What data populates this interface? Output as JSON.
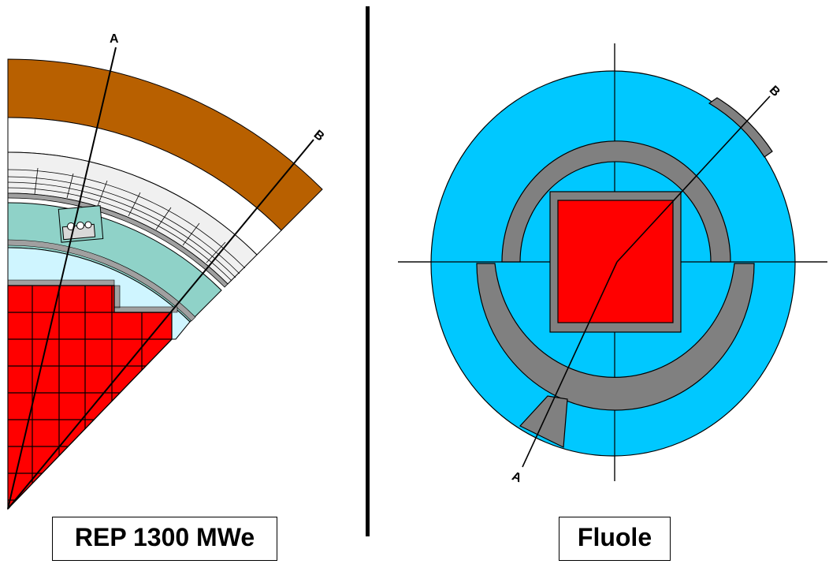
{
  "left_panel": {
    "caption": "REP 1300 MWe",
    "axis_a_label": "A",
    "axis_b_label": "B"
  },
  "right_panel": {
    "caption": "Fluole",
    "axis_a_label": "A",
    "axis_b_label": "B"
  },
  "colors": {
    "fuel": "#ff0000",
    "water": "#00c8ff",
    "light_water": "#cff5ff",
    "steel_grey": "#808080",
    "vessel_brown": "#b86000",
    "baffle_teal": "#8fd2c8",
    "reflector_light": "#f0f0f0"
  }
}
